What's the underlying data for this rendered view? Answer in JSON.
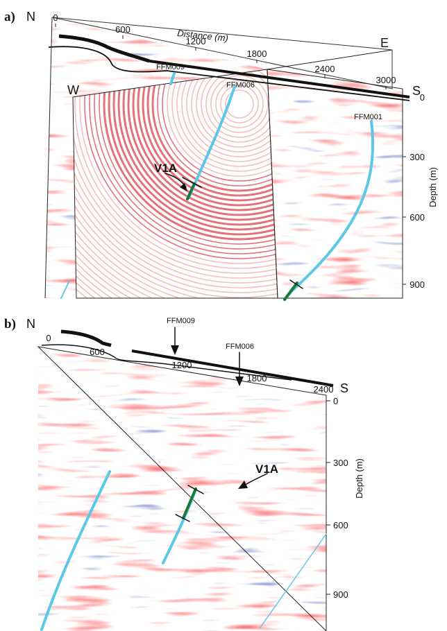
{
  "panels": [
    {
      "label": "a)",
      "north": "N",
      "west": "W",
      "east": "E",
      "south": "S",
      "distance_label": "Distance (m)",
      "distance_ticks": [
        0,
        600,
        1200,
        1800,
        2400,
        3000
      ],
      "depth_label": "Depth (m)",
      "depth_ticks": [
        0,
        300,
        600,
        900
      ],
      "boreholes": [
        "FFM009",
        "FFM006",
        "FFM001"
      ],
      "feature": "V1A"
    },
    {
      "label": "b)",
      "north": "N",
      "south": "S",
      "distance_ticks": [
        0,
        600,
        1200,
        1800,
        2400
      ],
      "depth_label": "Depth (m)",
      "depth_ticks": [
        0,
        300,
        600,
        900
      ],
      "boreholes": [
        "FFM009",
        "FFM006"
      ],
      "feature": "V1A"
    }
  ]
}
